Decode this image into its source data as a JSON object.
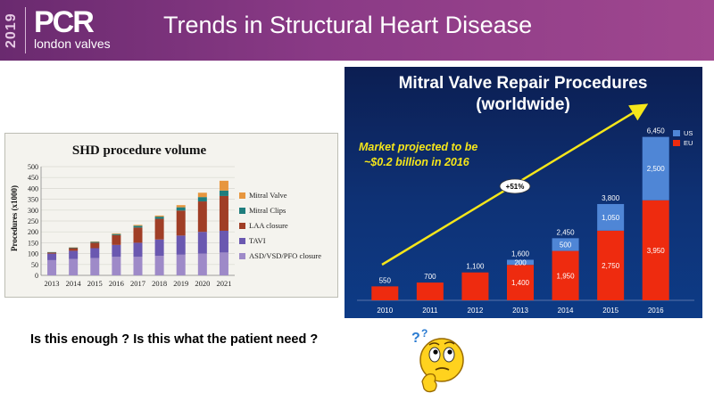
{
  "header": {
    "year": "2019",
    "logo_main": "PCR",
    "logo_sub": "london valves",
    "title": "Trends in Structural Heart Disease"
  },
  "question": "Is this enough ? Is this what the patient need ?",
  "chart_data": [
    {
      "type": "bar",
      "title": "SHD procedure volume",
      "ylabel": "Procedures (x1000)",
      "xlabel": "",
      "ylim": [
        0,
        500
      ],
      "yticks": [
        0,
        50,
        100,
        150,
        200,
        250,
        300,
        350,
        400,
        450,
        500
      ],
      "categories": [
        "2013",
        "2014",
        "2015",
        "2016",
        "2017",
        "2018",
        "2019",
        "2020",
        "2021"
      ],
      "stacked": true,
      "legend_position": "right",
      "series": [
        {
          "name": "ASD/VSD/PFO closure",
          "color": "#9e8ac8",
          "values": [
            70,
            75,
            80,
            85,
            85,
            90,
            95,
            100,
            105
          ]
        },
        {
          "name": "TAVI",
          "color": "#6a58b0",
          "values": [
            30,
            38,
            45,
            55,
            65,
            75,
            88,
            100,
            100
          ]
        },
        {
          "name": "LAA closure",
          "color": "#a03e26",
          "values": [
            5,
            12,
            25,
            45,
            70,
            95,
            115,
            140,
            160
          ]
        },
        {
          "name": "Mitral Clips",
          "color": "#1f7d7d",
          "values": [
            2,
            3,
            4,
            5,
            8,
            10,
            15,
            20,
            25
          ]
        },
        {
          "name": "Mitral Valve",
          "color": "#e7963e",
          "values": [
            0,
            1,
            2,
            3,
            4,
            5,
            10,
            20,
            45
          ]
        }
      ]
    },
    {
      "type": "bar",
      "title": "Mitral Valve Repair Procedures",
      "subtitle": "(worldwide)",
      "annotation": "Market projected to be ~$0.2 billion in 2016",
      "annotation_line1": "Market projected to be",
      "annotation_line2": "~$0.2 billion in 2016",
      "growth_label": "+51%",
      "categories": [
        "2010",
        "2011",
        "2012",
        "2013",
        "2014",
        "2015",
        "2016"
      ],
      "stacked": true,
      "ylim": [
        0,
        7000
      ],
      "legend_position": "top-right",
      "series": [
        {
          "name": "EU",
          "color": "#ee2b0f",
          "values": [
            550,
            700,
            1100,
            1400,
            1950,
            2750,
            3950
          ],
          "labels": [
            "",
            "",
            "",
            "1,400",
            "1,950",
            "2,750",
            "3,950"
          ]
        },
        {
          "name": "US",
          "color": "#4f86d6",
          "values": [
            0,
            0,
            0,
            200,
            500,
            1050,
            2500
          ],
          "labels": [
            "",
            "",
            "",
            "200",
            "500",
            "1,050",
            "2,500"
          ]
        }
      ],
      "totals": [
        550,
        700,
        1100,
        1600,
        2450,
        3800,
        6450
      ],
      "total_labels": [
        "550",
        "700",
        "1,100",
        "1,600",
        "2,450",
        "3,800",
        "6,450"
      ]
    }
  ],
  "colors": {
    "header_start": "#6a2a6f",
    "header_end": "#a0478f",
    "right_bg": "#0e3276",
    "annotation": "#f5e61a"
  },
  "icons": [
    "thinking-face-icon",
    "question-marks-icon"
  ]
}
